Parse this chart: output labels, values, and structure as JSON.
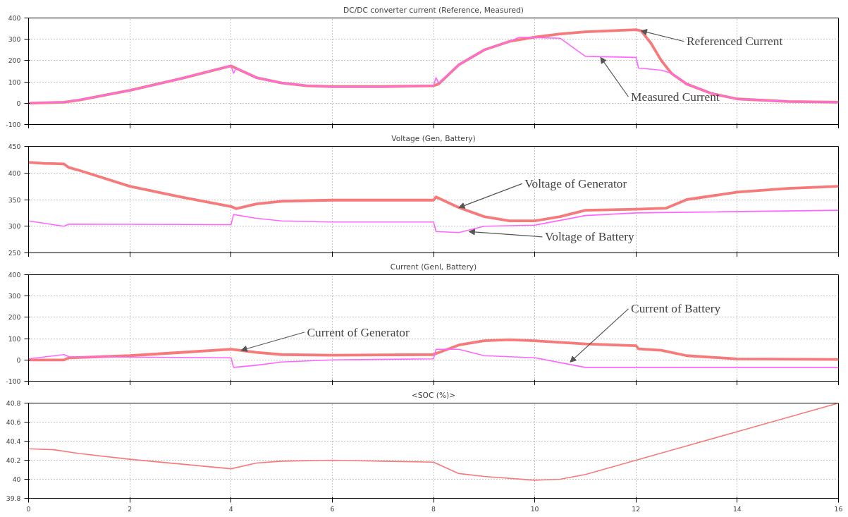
{
  "chart_data": [
    {
      "type": "line",
      "title": "DC/DC converter current (Reference, Measured)",
      "xlim": [
        0,
        16
      ],
      "xticks": [
        0,
        2,
        4,
        6,
        8,
        10,
        12,
        14,
        16
      ],
      "ylim": [
        -100,
        400
      ],
      "yticks": [
        -100,
        0,
        100,
        200,
        300,
        400
      ],
      "grid": true,
      "tick_labels": "y",
      "line_style": "solid",
      "marker": "none",
      "series": [
        {
          "color": "#f77a7a",
          "x": [
            0,
            0.7,
            1,
            2,
            3,
            4,
            4.5,
            5,
            5.5,
            6,
            7,
            8,
            8.1,
            8.5,
            9,
            9.5,
            10,
            10.5,
            11,
            12,
            12.1,
            12.3,
            12.5,
            12.7,
            13,
            13.5,
            14,
            15,
            16
          ],
          "values": [
            0,
            5,
            15,
            60,
            115,
            175,
            120,
            95,
            82,
            78,
            78,
            82,
            90,
            180,
            250,
            290,
            310,
            325,
            335,
            345,
            340,
            280,
            200,
            140,
            90,
            45,
            20,
            8,
            5
          ]
        },
        {
          "color": "#ff66ff",
          "x": [
            0,
            0.7,
            1,
            2,
            3,
            4,
            4.05,
            4.1,
            4.5,
            5,
            5.5,
            6,
            7,
            8,
            8.05,
            8.1,
            8.5,
            9,
            9.5,
            9.7,
            10.5,
            11,
            12,
            12.05,
            12.5,
            12.7,
            13,
            13.5,
            14,
            15,
            16
          ],
          "values": [
            0,
            5,
            15,
            60,
            115,
            175,
            140,
            165,
            120,
            95,
            82,
            78,
            78,
            82,
            120,
            95,
            180,
            250,
            290,
            310,
            305,
            220,
            215,
            165,
            155,
            140,
            90,
            45,
            20,
            8,
            5
          ]
        }
      ],
      "annotations": [
        {
          "text": "Referenced Current",
          "x": 12.1,
          "y": 340
        },
        {
          "text": "Measured Current",
          "x": 11.3,
          "y": 215
        }
      ]
    },
    {
      "type": "line",
      "title": "Voltage (Gen, Battery)",
      "xlim": [
        0,
        16
      ],
      "xticks": [
        0,
        2,
        4,
        6,
        8,
        10,
        12,
        14,
        16
      ],
      "ylim": [
        250,
        450
      ],
      "yticks": [
        250,
        300,
        350,
        400,
        450
      ],
      "grid": true,
      "tick_labels": "y",
      "line_style": "solid",
      "marker": "none",
      "series": [
        {
          "color": "#f77a7a",
          "x": [
            0,
            0.3,
            0.7,
            0.8,
            1,
            2,
            3,
            4,
            4.1,
            4.5,
            5,
            6,
            8,
            8.05,
            8.5,
            9,
            9.5,
            10,
            10.5,
            11,
            12,
            12.6,
            13,
            14,
            15,
            16
          ],
          "values": [
            420,
            418,
            417,
            410,
            405,
            375,
            355,
            337,
            333,
            342,
            347,
            349,
            349,
            355,
            335,
            318,
            310,
            310,
            318,
            330,
            332,
            334,
            350,
            364,
            371,
            375
          ]
        },
        {
          "color": "#ff66ff",
          "x": [
            0,
            0.7,
            0.8,
            4,
            4.05,
            4.5,
            5,
            6,
            8,
            8.05,
            8.5,
            9,
            10,
            11,
            12,
            16
          ],
          "values": [
            310,
            300,
            304,
            303,
            322,
            315,
            310,
            308,
            308,
            290,
            288,
            300,
            302,
            320,
            325,
            330
          ]
        }
      ],
      "annotations": [
        {
          "text": "Voltage of Generator",
          "x": 8.5,
          "y": 335
        },
        {
          "text": "Voltage of Battery",
          "x": 8.7,
          "y": 290
        }
      ]
    },
    {
      "type": "line",
      "title": "Current (Genl, Battery)",
      "xlim": [
        0,
        16
      ],
      "xticks": [
        0,
        2,
        4,
        6,
        8,
        10,
        12,
        14,
        16
      ],
      "ylim": [
        -100,
        400
      ],
      "yticks": [
        -100,
        0,
        100,
        200,
        300,
        400
      ],
      "grid": true,
      "tick_labels": "y",
      "line_style": "solid",
      "marker": "none",
      "series": [
        {
          "color": "#f77a7a",
          "x": [
            0,
            0.7,
            0.8,
            2,
            3,
            4,
            4.5,
            5,
            6,
            8,
            8.05,
            8.5,
            9,
            9.5,
            10,
            11,
            12,
            12.05,
            12.5,
            13,
            14,
            16
          ],
          "values": [
            0,
            0,
            10,
            20,
            35,
            50,
            35,
            25,
            22,
            25,
            30,
            70,
            90,
            95,
            90,
            75,
            67,
            52,
            45,
            20,
            5,
            2
          ]
        },
        {
          "color": "#ff66ff",
          "x": [
            0,
            0.7,
            0.8,
            4,
            4.05,
            4.5,
            5,
            6,
            8,
            8.05,
            8.5,
            9,
            9.5,
            10,
            11,
            16
          ],
          "values": [
            5,
            25,
            15,
            10,
            -35,
            -25,
            -10,
            0,
            5,
            50,
            50,
            20,
            15,
            10,
            -35,
            -35
          ]
        }
      ],
      "annotations": [
        {
          "text": "Current of Generator",
          "x": 4.2,
          "y": 45
        },
        {
          "text": "Current of Battery",
          "x": 10.7,
          "y": -10
        }
      ]
    },
    {
      "type": "line",
      "title": "<SOC (%)>",
      "xlim": [
        0,
        16
      ],
      "xticks": [
        0,
        2,
        4,
        6,
        8,
        10,
        12,
        14,
        16
      ],
      "ylim": [
        39.8,
        40.8
      ],
      "yticks": [
        39.8,
        40,
        40.2,
        40.4,
        40.6,
        40.8
      ],
      "grid": true,
      "line_style": "solid",
      "marker": "none",
      "series": [
        {
          "color": "#f77a7a",
          "x": [
            0,
            0.5,
            1,
            2,
            3,
            4,
            4.5,
            5,
            6,
            7,
            8,
            8.5,
            9,
            10,
            10.5,
            11,
            12,
            13,
            14,
            15,
            16
          ],
          "values": [
            40.32,
            40.31,
            40.27,
            40.21,
            40.16,
            40.11,
            40.17,
            40.19,
            40.2,
            40.19,
            40.18,
            40.06,
            40.03,
            39.99,
            40.0,
            40.05,
            40.2,
            40.35,
            40.5,
            40.65,
            40.8
          ]
        }
      ]
    }
  ]
}
